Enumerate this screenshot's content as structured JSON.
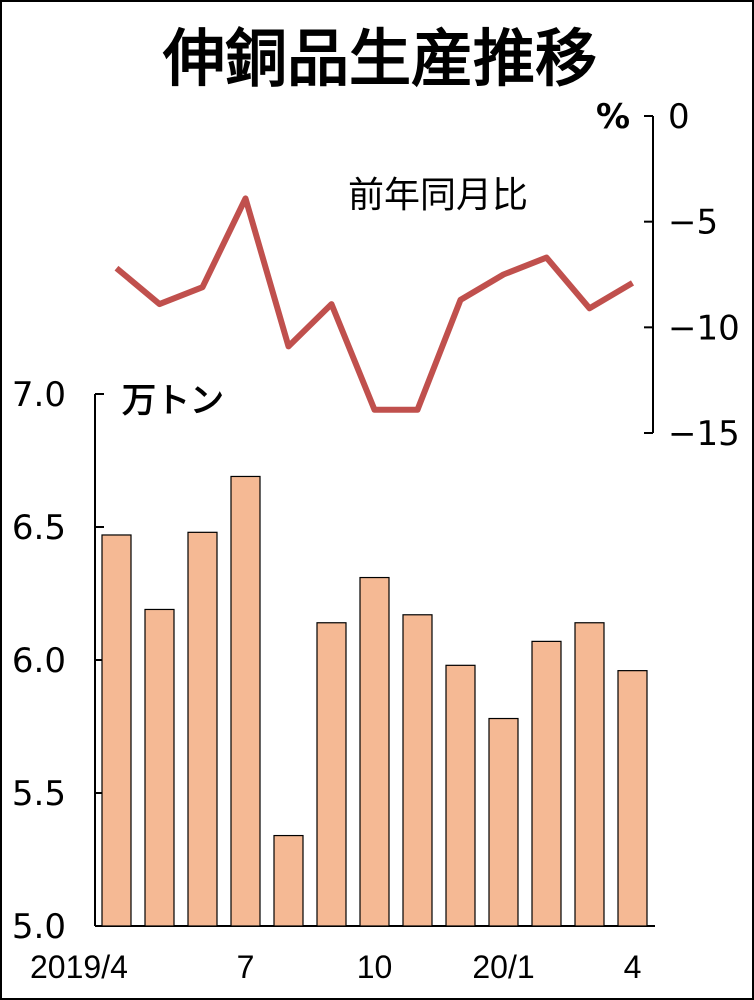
{
  "title": "伸銅品生産推移",
  "chart_data": [
    {
      "type": "bar",
      "categories": [
        "2019/4",
        "",
        "",
        "7",
        "",
        "",
        "10",
        "",
        "",
        "20/1",
        "",
        "",
        "4"
      ],
      "values": [
        6.47,
        6.19,
        6.48,
        6.69,
        5.34,
        6.14,
        6.31,
        6.17,
        5.98,
        5.78,
        6.07,
        6.14,
        5.96
      ],
      "unit": "万トン",
      "ylim": [
        5.0,
        7.0
      ],
      "yticks": [
        "7.0",
        "6.5",
        "6.0",
        "5.5",
        "5.0"
      ],
      "xtick_labels": [
        "2019/4",
        "7",
        "10",
        "20/1",
        "4"
      ],
      "bar_color": "#F5B994"
    },
    {
      "type": "line",
      "series": [
        {
          "name": "前年同月比",
          "values": [
            -7.2,
            -8.9,
            -8.1,
            -3.9,
            -10.9,
            -8.9,
            -13.9,
            -13.9,
            -8.7,
            -7.5,
            -6.7,
            -9.1,
            -7.9
          ]
        }
      ],
      "unit": "%",
      "ylim": [
        -15,
        0
      ],
      "yticks": [
        "0",
        "−5",
        "−10",
        "−15"
      ],
      "line_color": "#C0504D"
    }
  ]
}
